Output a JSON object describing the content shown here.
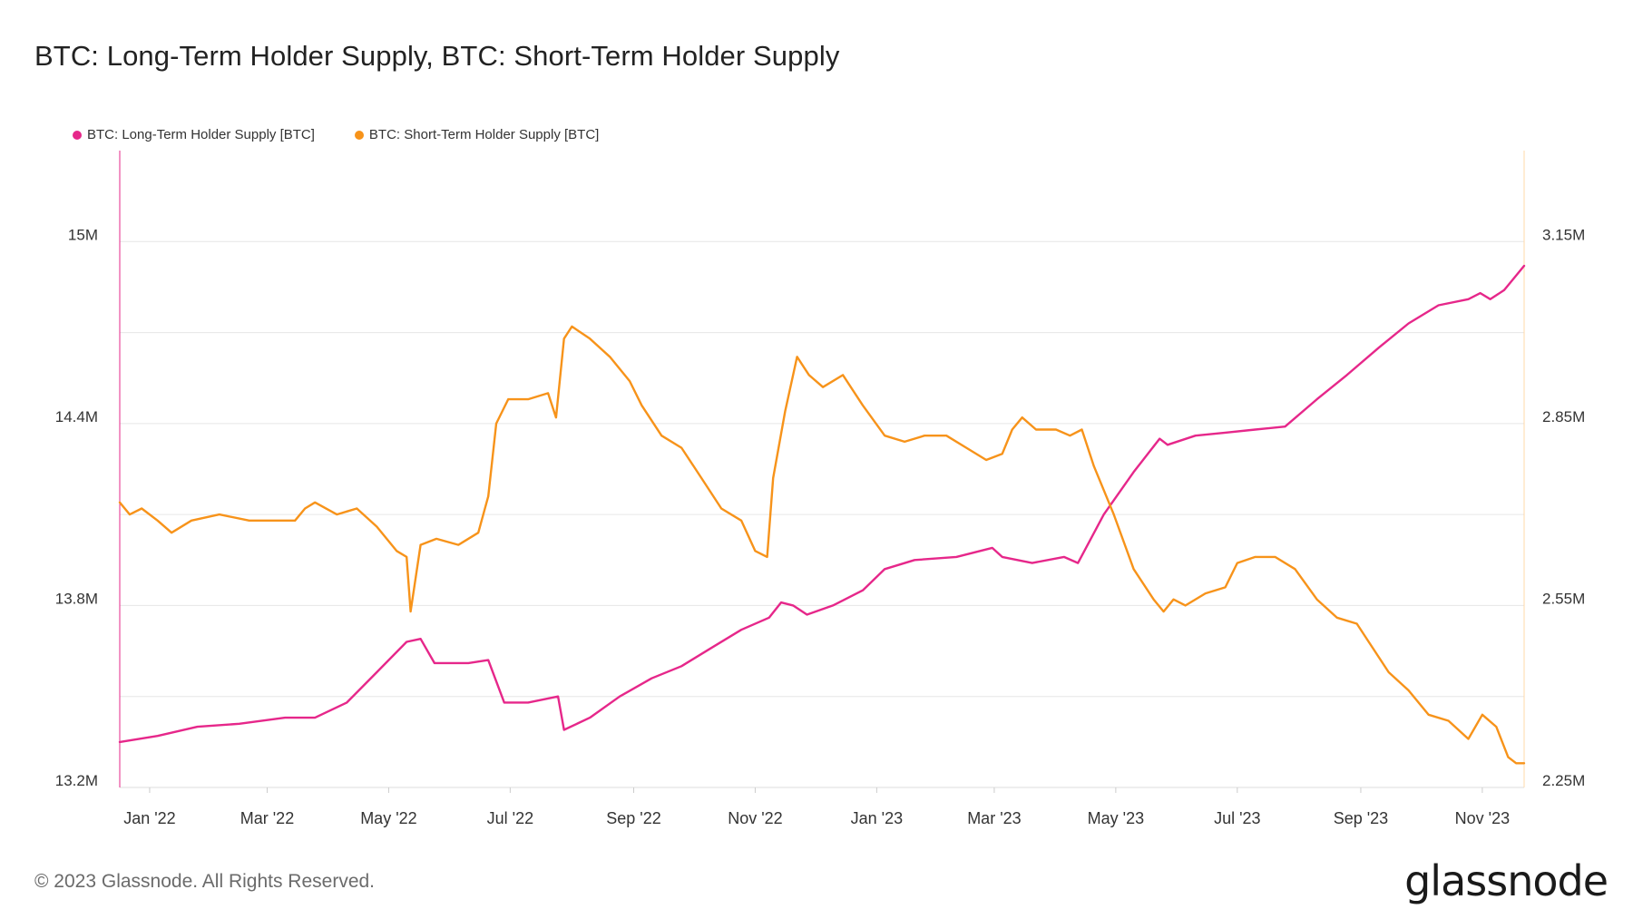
{
  "title": "BTC: Long-Term Holder Supply, BTC: Short-Term Holder Supply",
  "footer": "© 2023 Glassnode. All Rights Reserved.",
  "logo": "glassnode",
  "colors": {
    "lth": "#e6278a",
    "sth": "#f7931a",
    "grid": "#e6e6e6",
    "axis_text": "#333333"
  },
  "chart_data": {
    "type": "line",
    "legend_placement": "top-left",
    "grid": true,
    "x_range": [
      "2021-12-17",
      "2023-11-22"
    ],
    "x_ticks": [
      {
        "date": "2022-01-01",
        "label": "Jan '22"
      },
      {
        "date": "2022-03-01",
        "label": "Mar '22"
      },
      {
        "date": "2022-05-01",
        "label": "May '22"
      },
      {
        "date": "2022-07-01",
        "label": "Jul '22"
      },
      {
        "date": "2022-09-01",
        "label": "Sep '22"
      },
      {
        "date": "2022-11-01",
        "label": "Nov '22"
      },
      {
        "date": "2023-01-01",
        "label": "Jan '23"
      },
      {
        "date": "2023-03-01",
        "label": "Mar '23"
      },
      {
        "date": "2023-05-01",
        "label": "May '23"
      },
      {
        "date": "2023-07-01",
        "label": "Jul '23"
      },
      {
        "date": "2023-09-01",
        "label": "Sep '23"
      },
      {
        "date": "2023-11-01",
        "label": "Nov '23"
      }
    ],
    "y_left": {
      "range": [
        13200000,
        15300000
      ],
      "ticks": [
        {
          "value": 13200000,
          "label": "13.2M"
        },
        {
          "value": 13800000,
          "label": "13.8M"
        },
        {
          "value": 14400000,
          "label": "14.4M"
        },
        {
          "value": 15000000,
          "label": "15M"
        }
      ]
    },
    "y_right": {
      "range": [
        2250000,
        3300000
      ],
      "ticks": [
        {
          "value": 2250000,
          "label": "2.25M"
        },
        {
          "value": 2550000,
          "label": "2.55M"
        },
        {
          "value": 2850000,
          "label": "2.85M"
        },
        {
          "value": 3150000,
          "label": "3.15M"
        }
      ]
    },
    "gridlines_left": [
      13500000,
      13800000,
      14100000,
      14400000,
      14700000,
      15000000
    ],
    "series": [
      {
        "name": "BTC: Long-Term Holder Supply [BTC]",
        "axis": "left",
        "color": "#e6278a",
        "points": [
          [
            "2021-12-17",
            13350000
          ],
          [
            "2022-01-05",
            13370000
          ],
          [
            "2022-01-25",
            13400000
          ],
          [
            "2022-02-15",
            13410000
          ],
          [
            "2022-03-10",
            13430000
          ],
          [
            "2022-03-25",
            13430000
          ],
          [
            "2022-04-10",
            13480000
          ],
          [
            "2022-04-25",
            13580000
          ],
          [
            "2022-05-10",
            13680000
          ],
          [
            "2022-05-17",
            13690000
          ],
          [
            "2022-05-24",
            13610000
          ],
          [
            "2022-06-10",
            13610000
          ],
          [
            "2022-06-20",
            13620000
          ],
          [
            "2022-06-28",
            13480000
          ],
          [
            "2022-07-10",
            13480000
          ],
          [
            "2022-07-25",
            13500000
          ],
          [
            "2022-07-28",
            13390000
          ],
          [
            "2022-08-10",
            13430000
          ],
          [
            "2022-08-25",
            13500000
          ],
          [
            "2022-09-10",
            13560000
          ],
          [
            "2022-09-25",
            13600000
          ],
          [
            "2022-10-10",
            13660000
          ],
          [
            "2022-10-25",
            13720000
          ],
          [
            "2022-11-08",
            13760000
          ],
          [
            "2022-11-14",
            13810000
          ],
          [
            "2022-11-20",
            13800000
          ],
          [
            "2022-11-27",
            13770000
          ],
          [
            "2022-12-10",
            13800000
          ],
          [
            "2022-12-25",
            13850000
          ],
          [
            "2023-01-05",
            13920000
          ],
          [
            "2023-01-20",
            13950000
          ],
          [
            "2023-02-10",
            13960000
          ],
          [
            "2023-02-28",
            13990000
          ],
          [
            "2023-03-05",
            13960000
          ],
          [
            "2023-03-20",
            13940000
          ],
          [
            "2023-04-05",
            13960000
          ],
          [
            "2023-04-12",
            13940000
          ],
          [
            "2023-04-25",
            14100000
          ],
          [
            "2023-05-10",
            14240000
          ],
          [
            "2023-05-23",
            14350000
          ],
          [
            "2023-05-27",
            14330000
          ],
          [
            "2023-06-10",
            14360000
          ],
          [
            "2023-06-25",
            14370000
          ],
          [
            "2023-07-10",
            14380000
          ],
          [
            "2023-07-25",
            14390000
          ],
          [
            "2023-08-10",
            14480000
          ],
          [
            "2023-08-25",
            14560000
          ],
          [
            "2023-09-10",
            14650000
          ],
          [
            "2023-09-25",
            14730000
          ],
          [
            "2023-10-10",
            14790000
          ],
          [
            "2023-10-25",
            14810000
          ],
          [
            "2023-10-31",
            14830000
          ],
          [
            "2023-11-05",
            14810000
          ],
          [
            "2023-11-12",
            14840000
          ],
          [
            "2023-11-22",
            14920000
          ]
        ]
      },
      {
        "name": "BTC: Short-Term Holder Supply [BTC]",
        "axis": "right",
        "color": "#f7931a",
        "points": [
          [
            "2021-12-17",
            2720000
          ],
          [
            "2021-12-22",
            2700000
          ],
          [
            "2021-12-28",
            2710000
          ],
          [
            "2022-01-05",
            2690000
          ],
          [
            "2022-01-12",
            2670000
          ],
          [
            "2022-01-22",
            2690000
          ],
          [
            "2022-02-05",
            2700000
          ],
          [
            "2022-02-20",
            2690000
          ],
          [
            "2022-03-05",
            2690000
          ],
          [
            "2022-03-15",
            2690000
          ],
          [
            "2022-03-20",
            2710000
          ],
          [
            "2022-03-25",
            2720000
          ],
          [
            "2022-04-05",
            2700000
          ],
          [
            "2022-04-15",
            2710000
          ],
          [
            "2022-04-25",
            2680000
          ],
          [
            "2022-05-05",
            2640000
          ],
          [
            "2022-05-10",
            2630000
          ],
          [
            "2022-05-12",
            2540000
          ],
          [
            "2022-05-17",
            2650000
          ],
          [
            "2022-05-25",
            2660000
          ],
          [
            "2022-06-05",
            2650000
          ],
          [
            "2022-06-15",
            2670000
          ],
          [
            "2022-06-20",
            2730000
          ],
          [
            "2022-06-24",
            2850000
          ],
          [
            "2022-06-30",
            2890000
          ],
          [
            "2022-07-10",
            2890000
          ],
          [
            "2022-07-20",
            2900000
          ],
          [
            "2022-07-24",
            2860000
          ],
          [
            "2022-07-28",
            2990000
          ],
          [
            "2022-08-01",
            3010000
          ],
          [
            "2022-08-10",
            2990000
          ],
          [
            "2022-08-20",
            2960000
          ],
          [
            "2022-08-30",
            2920000
          ],
          [
            "2022-09-05",
            2880000
          ],
          [
            "2022-09-15",
            2830000
          ],
          [
            "2022-09-25",
            2810000
          ],
          [
            "2022-10-05",
            2760000
          ],
          [
            "2022-10-15",
            2710000
          ],
          [
            "2022-10-25",
            2690000
          ],
          [
            "2022-11-01",
            2640000
          ],
          [
            "2022-11-07",
            2630000
          ],
          [
            "2022-11-10",
            2760000
          ],
          [
            "2022-11-16",
            2870000
          ],
          [
            "2022-11-22",
            2960000
          ],
          [
            "2022-11-28",
            2930000
          ],
          [
            "2022-12-05",
            2910000
          ],
          [
            "2022-12-15",
            2930000
          ],
          [
            "2022-12-25",
            2880000
          ],
          [
            "2023-01-05",
            2830000
          ],
          [
            "2023-01-15",
            2820000
          ],
          [
            "2023-01-25",
            2830000
          ],
          [
            "2023-02-05",
            2830000
          ],
          [
            "2023-02-15",
            2810000
          ],
          [
            "2023-02-25",
            2790000
          ],
          [
            "2023-03-05",
            2800000
          ],
          [
            "2023-03-10",
            2840000
          ],
          [
            "2023-03-15",
            2860000
          ],
          [
            "2023-03-22",
            2840000
          ],
          [
            "2023-04-01",
            2840000
          ],
          [
            "2023-04-08",
            2830000
          ],
          [
            "2023-04-14",
            2840000
          ],
          [
            "2023-04-20",
            2780000
          ],
          [
            "2023-04-30",
            2700000
          ],
          [
            "2023-05-10",
            2610000
          ],
          [
            "2023-05-20",
            2560000
          ],
          [
            "2023-05-25",
            2540000
          ],
          [
            "2023-05-30",
            2560000
          ],
          [
            "2023-06-05",
            2550000
          ],
          [
            "2023-06-15",
            2570000
          ],
          [
            "2023-06-25",
            2580000
          ],
          [
            "2023-07-01",
            2620000
          ],
          [
            "2023-07-10",
            2630000
          ],
          [
            "2023-07-20",
            2630000
          ],
          [
            "2023-07-30",
            2610000
          ],
          [
            "2023-08-10",
            2560000
          ],
          [
            "2023-08-20",
            2530000
          ],
          [
            "2023-08-30",
            2520000
          ],
          [
            "2023-09-05",
            2490000
          ],
          [
            "2023-09-15",
            2440000
          ],
          [
            "2023-09-25",
            2410000
          ],
          [
            "2023-10-05",
            2370000
          ],
          [
            "2023-10-15",
            2360000
          ],
          [
            "2023-10-25",
            2330000
          ],
          [
            "2023-11-01",
            2370000
          ],
          [
            "2023-11-08",
            2350000
          ],
          [
            "2023-11-14",
            2300000
          ],
          [
            "2023-11-18",
            2290000
          ],
          [
            "2023-11-22",
            2290000
          ]
        ]
      }
    ]
  }
}
